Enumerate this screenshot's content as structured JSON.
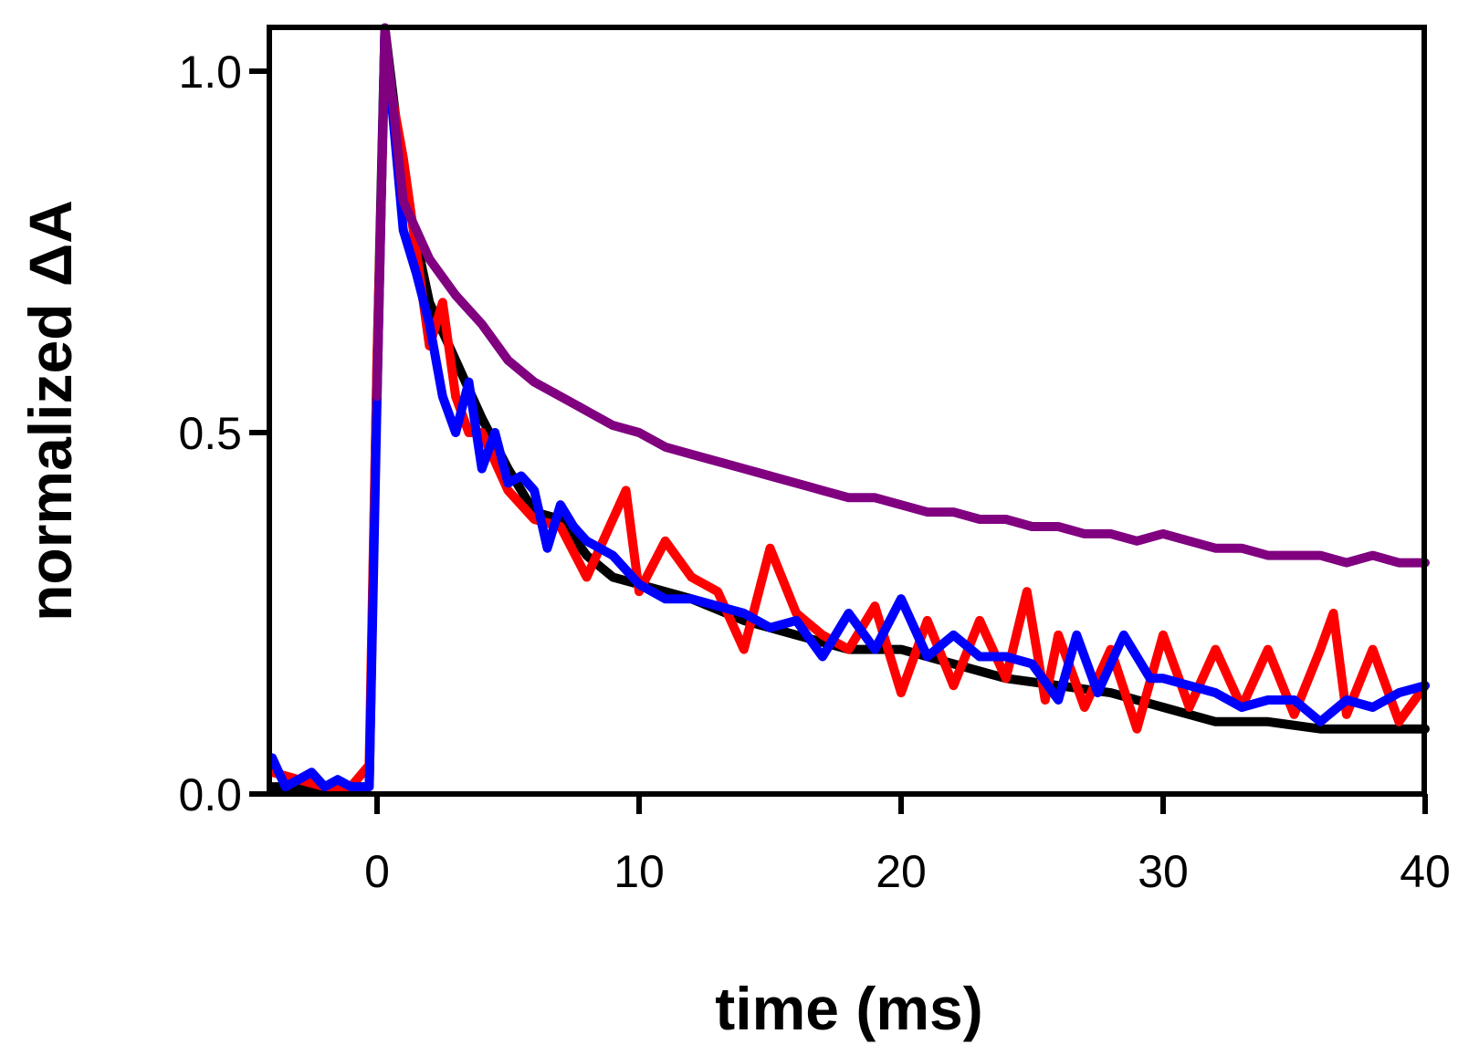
{
  "chart_data": {
    "type": "line",
    "title": "",
    "xlabel": "time (ms)",
    "ylabel": "normalized ΔA",
    "xlim": [
      -4,
      40
    ],
    "ylim": [
      0,
      1.06
    ],
    "xticks": [
      0,
      10,
      20,
      30,
      40
    ],
    "xtick_labels": [
      "0",
      "10",
      "20",
      "30",
      "40"
    ],
    "yticks": [
      0,
      0.5,
      1.0
    ],
    "ytick_labels": [
      "0.0",
      "0.5",
      "1.0"
    ],
    "grid": false,
    "legend": null,
    "series": [
      {
        "name": "black trace",
        "color": "#000000",
        "x": [
          -4,
          -3,
          -2,
          -1,
          -0.3,
          0,
          0.3,
          1,
          2,
          3,
          4,
          5,
          6,
          7,
          8,
          9,
          10,
          12,
          14,
          16,
          18,
          20,
          22,
          24,
          26,
          28,
          30,
          32,
          34,
          36,
          38,
          40
        ],
        "y": [
          0.01,
          0.01,
          0.01,
          0.01,
          0.01,
          0.6,
          1.06,
          0.85,
          0.68,
          0.6,
          0.52,
          0.45,
          0.39,
          0.38,
          0.33,
          0.3,
          0.29,
          0.27,
          0.24,
          0.22,
          0.2,
          0.2,
          0.18,
          0.16,
          0.15,
          0.14,
          0.12,
          0.1,
          0.1,
          0.09,
          0.09,
          0.09
        ]
      },
      {
        "name": "red trace",
        "color": "#ff0000",
        "x": [
          -4,
          -3,
          -2,
          -1,
          -0.3,
          0,
          0.3,
          1,
          1.5,
          2,
          2.5,
          3,
          3.5,
          4,
          5,
          6,
          7,
          8,
          9,
          9.5,
          10,
          11,
          12,
          13,
          14,
          15,
          16,
          17,
          18,
          19,
          20,
          21,
          22,
          23,
          24,
          24.8,
          25.5,
          26,
          27,
          28,
          29,
          30,
          31,
          32,
          33,
          34,
          35,
          36,
          36.5,
          37,
          38,
          39,
          40
        ],
        "y": [
          0.03,
          0.02,
          0.01,
          0.01,
          0.04,
          0.6,
          1.02,
          0.88,
          0.75,
          0.62,
          0.68,
          0.55,
          0.5,
          0.5,
          0.42,
          0.38,
          0.37,
          0.3,
          0.38,
          0.42,
          0.28,
          0.35,
          0.3,
          0.28,
          0.2,
          0.34,
          0.25,
          0.22,
          0.2,
          0.26,
          0.14,
          0.24,
          0.15,
          0.24,
          0.16,
          0.28,
          0.13,
          0.22,
          0.12,
          0.2,
          0.09,
          0.22,
          0.12,
          0.2,
          0.12,
          0.2,
          0.11,
          0.2,
          0.25,
          0.11,
          0.2,
          0.1,
          0.15
        ]
      },
      {
        "name": "blue trace",
        "color": "#0000ff",
        "x": [
          -4,
          -3.5,
          -3,
          -2.5,
          -2,
          -1.5,
          -1,
          -0.3,
          0,
          0.3,
          1,
          1.5,
          2,
          2.5,
          3,
          3.5,
          4,
          4.5,
          5,
          5.5,
          6,
          6.5,
          7,
          7.5,
          8,
          9,
          10,
          11,
          12,
          13,
          14,
          15,
          16,
          17,
          18,
          19,
          20,
          21,
          22,
          23,
          24,
          25,
          26,
          26.7,
          27.5,
          28.5,
          29.5,
          30,
          31,
          32,
          33,
          34,
          35,
          36,
          37,
          38,
          39,
          40
        ],
        "y": [
          0.05,
          0.01,
          0.02,
          0.03,
          0.01,
          0.02,
          0.01,
          0.01,
          0.55,
          1.06,
          0.78,
          0.72,
          0.65,
          0.55,
          0.5,
          0.57,
          0.45,
          0.5,
          0.43,
          0.44,
          0.42,
          0.34,
          0.4,
          0.37,
          0.35,
          0.33,
          0.29,
          0.27,
          0.27,
          0.26,
          0.25,
          0.23,
          0.24,
          0.19,
          0.25,
          0.2,
          0.27,
          0.19,
          0.22,
          0.19,
          0.19,
          0.18,
          0.13,
          0.22,
          0.14,
          0.22,
          0.16,
          0.16,
          0.15,
          0.14,
          0.12,
          0.13,
          0.13,
          0.1,
          0.13,
          0.12,
          0.14,
          0.15
        ]
      },
      {
        "name": "purple trace",
        "color": "#800080",
        "x": [
          0,
          0.3,
          1,
          2,
          3,
          4,
          5,
          6,
          7,
          8,
          9,
          10,
          11,
          12,
          13,
          14,
          15,
          16,
          17,
          18,
          19,
          20,
          21,
          22,
          23,
          24,
          25,
          26,
          27,
          28,
          29,
          30,
          31,
          32,
          33,
          34,
          35,
          36,
          37,
          38,
          39,
          40
        ],
        "y": [
          0.55,
          1.06,
          0.82,
          0.74,
          0.69,
          0.65,
          0.6,
          0.57,
          0.55,
          0.53,
          0.51,
          0.5,
          0.48,
          0.47,
          0.46,
          0.45,
          0.44,
          0.43,
          0.42,
          0.41,
          0.41,
          0.4,
          0.39,
          0.39,
          0.38,
          0.38,
          0.37,
          0.37,
          0.36,
          0.36,
          0.35,
          0.36,
          0.35,
          0.34,
          0.34,
          0.33,
          0.33,
          0.33,
          0.32,
          0.33,
          0.32,
          0.32
        ]
      }
    ]
  }
}
